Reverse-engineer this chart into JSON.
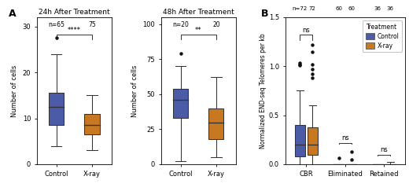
{
  "panel_A1_title": "24h After Treatment",
  "panel_A2_title": "48h After Treatment",
  "color_control": "#4C5BA8",
  "color_xray": "#C87820",
  "color_outline": "#333333",
  "A1_control": {
    "q1": 8.5,
    "median": 12.5,
    "q3": 15.5,
    "whisker_low": 4.0,
    "whisker_high": 24.0,
    "outliers": [
      27.5
    ]
  },
  "A1_xray": {
    "q1": 6.5,
    "median": 8.5,
    "q3": 11.0,
    "whisker_low": 3.0,
    "whisker_high": 15.0,
    "outliers": []
  },
  "A1_ylim": [
    0,
    32
  ],
  "A1_yticks": [
    0,
    10,
    20,
    30
  ],
  "A1_n_control": "n=65",
  "A1_n_xray": "75",
  "A1_sig": "****",
  "A1_ylabel": "Number of cells",
  "A2_control": {
    "q1": 33.0,
    "median": 46.0,
    "q3": 54.0,
    "whisker_low": 2.0,
    "whisker_high": 70.0,
    "outliers": [
      79.0
    ]
  },
  "A2_xray": {
    "q1": 18.0,
    "median": 30.0,
    "q3": 40.0,
    "whisker_low": 5.0,
    "whisker_high": 62.0,
    "outliers": []
  },
  "A2_ylim": [
    0,
    105
  ],
  "A2_yticks": [
    0,
    25,
    50,
    75,
    100
  ],
  "A2_n_control": "n=20",
  "A2_n_xray": "20",
  "A2_sig": "**",
  "A2_ylabel": "Number of cells",
  "B_CBR_control": {
    "q1": 0.08,
    "median": 0.2,
    "q3": 0.4,
    "whisker_low": 0.0,
    "whisker_high": 0.75,
    "outliers": [
      1.01,
      1.02,
      1.03
    ]
  },
  "B_CBR_xray": {
    "q1": 0.1,
    "median": 0.2,
    "q3": 0.38,
    "whisker_low": 0.0,
    "whisker_high": 0.6,
    "outliers": [
      0.88,
      0.92,
      0.97,
      1.02,
      1.15,
      1.22
    ]
  },
  "B_Eliminated_control": {
    "q1": 0.0,
    "median": 0.0,
    "q3": 0.0,
    "whisker_low": 0.0,
    "whisker_high": 0.0,
    "outliers": [
      0.06
    ]
  },
  "B_Eliminated_xray": {
    "q1": 0.0,
    "median": 0.0,
    "q3": 0.0,
    "whisker_low": 0.0,
    "whisker_high": 0.0,
    "outliers": [
      0.05,
      0.13
    ]
  },
  "B_Retained_control": {
    "q1": 0.0,
    "median": 0.0,
    "q3": 0.0,
    "whisker_low": 0.0,
    "whisker_high": 0.0,
    "outliers": []
  },
  "B_Retained_xray": {
    "q1": 0.0,
    "median": 0.0,
    "q3": 0.0,
    "whisker_low": 0.0,
    "whisker_high": 0.02,
    "outliers": []
  },
  "B_ylim": [
    0,
    1.5
  ],
  "B_yticks": [
    0.0,
    0.5,
    1.0,
    1.5
  ],
  "B_ylabel": "Normalized END-seq Telomeres per kb",
  "B_categories": [
    "CBR",
    "Eliminated",
    "Retained"
  ],
  "B_ns_CBR": "ns",
  "B_ns_Elim": "ns",
  "B_ns_Ret": "ns",
  "B_n_labels": [
    "n=72",
    "72",
    "60",
    "60",
    "36",
    "36"
  ],
  "legend_title": "Treatment",
  "legend_control": "Control",
  "legend_xray": "X-ray"
}
